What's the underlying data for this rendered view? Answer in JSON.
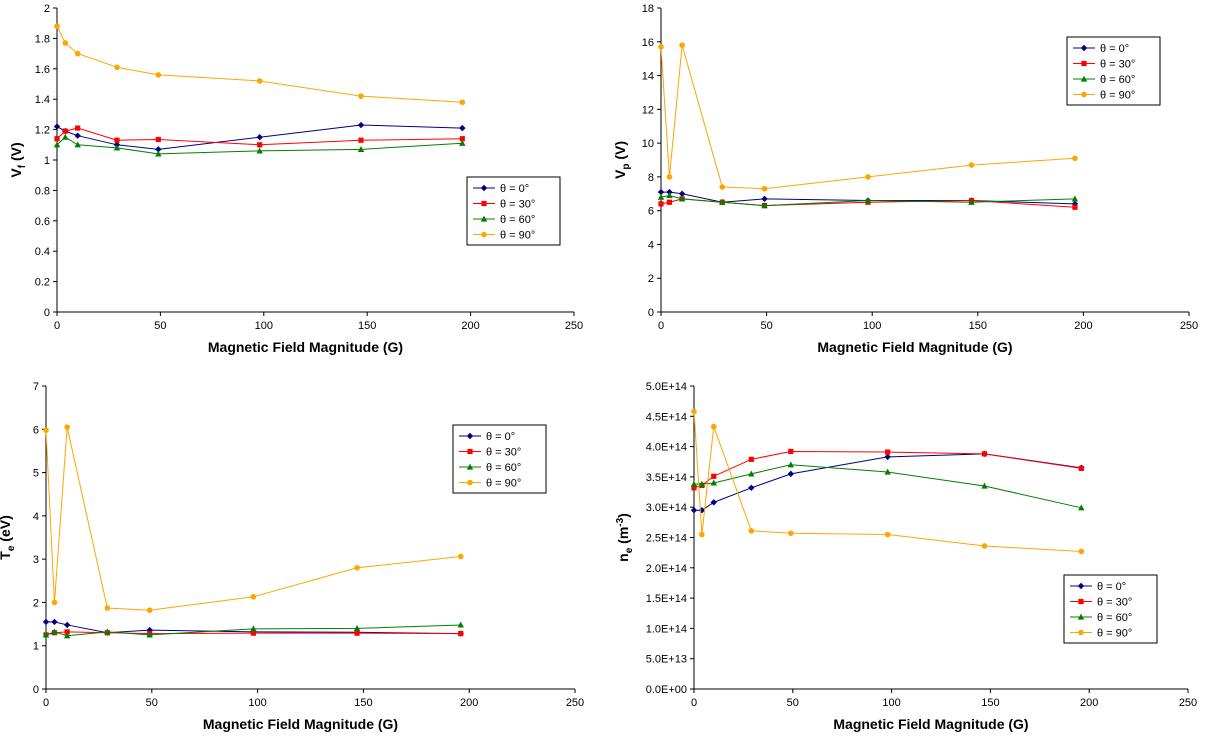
{
  "chart_data": [
    {
      "type": "line",
      "xlabel": "Magnetic Field Magnitude (G)",
      "ylabel": {
        "main": "V",
        "sub": "f",
        "unit": " (V)"
      },
      "xlim": [
        0,
        250
      ],
      "xticks": [
        "0",
        "50",
        "100",
        "150",
        "200",
        "250"
      ],
      "ylim": [
        0,
        2
      ],
      "yticks": [
        "0",
        "0.2",
        "0.4",
        "0.6",
        "0.8",
        "1",
        "1.2",
        "1.4",
        "1.6",
        "1.8",
        "2"
      ],
      "grid": false,
      "legend": "right-middle",
      "x": [
        0,
        4,
        10,
        29,
        49,
        98,
        147,
        196
      ],
      "series": [
        {
          "name": "θ = 0°",
          "color": "#000080",
          "marker": "diamond",
          "values": [
            1.22,
            1.19,
            1.16,
            1.1,
            1.07,
            1.15,
            1.23,
            1.21
          ]
        },
        {
          "name": "θ = 30°",
          "color": "#ff0000",
          "marker": "square",
          "values": [
            1.14,
            1.19,
            1.21,
            1.13,
            1.135,
            1.1,
            1.13,
            1.14
          ]
        },
        {
          "name": "θ = 60°",
          "color": "#008000",
          "marker": "triangle",
          "values": [
            1.1,
            1.15,
            1.1,
            1.08,
            1.04,
            1.06,
            1.07,
            1.11
          ]
        },
        {
          "name": "θ = 90°",
          "color": "#ffa500",
          "marker": "circle",
          "values": [
            1.88,
            1.77,
            1.7,
            1.61,
            1.56,
            1.52,
            1.42,
            1.38
          ]
        }
      ]
    },
    {
      "type": "line",
      "xlabel": "Magnetic Field Magnitude (G)",
      "ylabel": {
        "main": "V",
        "sub": "p",
        "unit": " (V)"
      },
      "xlim": [
        0,
        250
      ],
      "xticks": [
        "0",
        "50",
        "100",
        "150",
        "200",
        "250"
      ],
      "ylim": [
        0,
        18
      ],
      "yticks": [
        "0",
        "2",
        "4",
        "6",
        "8",
        "10",
        "12",
        "14",
        "16",
        "18"
      ],
      "grid": false,
      "legend": "top-right",
      "x": [
        0,
        4,
        10,
        29,
        49,
        98,
        147,
        196
      ],
      "series": [
        {
          "name": "θ = 0°",
          "color": "#000080",
          "marker": "diamond",
          "values": [
            7.1,
            7.1,
            7.0,
            6.5,
            6.7,
            6.6,
            6.6,
            6.4
          ]
        },
        {
          "name": "θ = 30°",
          "color": "#ff0000",
          "marker": "square",
          "values": [
            6.4,
            6.5,
            6.7,
            6.5,
            6.3,
            6.5,
            6.6,
            6.2
          ]
        },
        {
          "name": "θ = 60°",
          "color": "#008000",
          "marker": "triangle",
          "values": [
            6.8,
            6.9,
            6.7,
            6.5,
            6.3,
            6.6,
            6.5,
            6.7
          ]
        },
        {
          "name": "θ = 90°",
          "color": "#ffa500",
          "marker": "circle",
          "values": [
            15.7,
            8.0,
            15.8,
            7.4,
            7.3,
            8.0,
            8.7,
            9.1
          ]
        }
      ]
    },
    {
      "type": "line",
      "xlabel": "Magnetic Field Magnitude (G)",
      "ylabel": {
        "main": "T",
        "sub": "e",
        "unit": " (eV)"
      },
      "xlim": [
        0,
        250
      ],
      "xticks": [
        "0",
        "50",
        "100",
        "150",
        "200",
        "250"
      ],
      "ylim": [
        0,
        7
      ],
      "yticks": [
        "0",
        "1",
        "2",
        "3",
        "4",
        "5",
        "6",
        "7"
      ],
      "grid": false,
      "legend": "top-right",
      "x": [
        0,
        4,
        10,
        29,
        49,
        98,
        147,
        196
      ],
      "series": [
        {
          "name": "θ = 0°",
          "color": "#000080",
          "marker": "diamond",
          "values": [
            1.55,
            1.55,
            1.48,
            1.3,
            1.36,
            1.32,
            1.31,
            1.28
          ]
        },
        {
          "name": "θ = 30°",
          "color": "#ff0000",
          "marker": "square",
          "values": [
            1.25,
            1.3,
            1.32,
            1.3,
            1.28,
            1.29,
            1.29,
            1.28
          ]
        },
        {
          "name": "θ = 60°",
          "color": "#008000",
          "marker": "triangle",
          "values": [
            1.25,
            1.32,
            1.23,
            1.32,
            1.25,
            1.39,
            1.4,
            1.48
          ]
        },
        {
          "name": "θ = 90°",
          "color": "#ffa500",
          "marker": "circle",
          "values": [
            5.98,
            2.0,
            6.05,
            1.87,
            1.82,
            2.13,
            2.8,
            3.06
          ]
        }
      ]
    },
    {
      "type": "line",
      "xlabel": "Magnetic Field Magnitude (G)",
      "ylabel": {
        "main": "n",
        "sub": "e",
        "unit": " (m",
        "sup": "-3",
        "unit_end": ")"
      },
      "xlim": [
        0,
        250
      ],
      "xticks": [
        "0",
        "50",
        "100",
        "150",
        "200",
        "250"
      ],
      "ylim": [
        0,
        500000000000000.0
      ],
      "yticks": [
        "0.0E+00",
        "5.0E+13",
        "1.0E+14",
        "1.5E+14",
        "2.0E+14",
        "2.5E+14",
        "3.0E+14",
        "3.5E+14",
        "4.0E+14",
        "4.5E+14",
        "5.0E+14"
      ],
      "grid": false,
      "legend": "bottom-right",
      "x": [
        0,
        4,
        10,
        29,
        49,
        98,
        147,
        196
      ],
      "series": [
        {
          "name": "θ = 0°",
          "color": "#000080",
          "marker": "diamond",
          "values": [
            295000000000000.0,
            295000000000000.0,
            308000000000000.0,
            332000000000000.0,
            355000000000000.0,
            383000000000000.0,
            388000000000000.0,
            365000000000000.0
          ]
        },
        {
          "name": "θ = 30°",
          "color": "#ff0000",
          "marker": "square",
          "values": [
            332000000000000.0,
            336000000000000.0,
            351000000000000.0,
            379000000000000.0,
            392000000000000.0,
            391000000000000.0,
            388000000000000.0,
            364000000000000.0
          ]
        },
        {
          "name": "θ = 60°",
          "color": "#008000",
          "marker": "triangle",
          "values": [
            338000000000000.0,
            338000000000000.0,
            340000000000000.0,
            355000000000000.0,
            370000000000000.0,
            358000000000000.0,
            335000000000000.0,
            299000000000000.0
          ]
        },
        {
          "name": "θ = 90°",
          "color": "#ffa500",
          "marker": "circle",
          "values": [
            458000000000000.0,
            255000000000000.0,
            433000000000000.0,
            261000000000000.0,
            257000000000000.0,
            255000000000000.0,
            236000000000000.0,
            227000000000000.0
          ]
        }
      ]
    }
  ]
}
